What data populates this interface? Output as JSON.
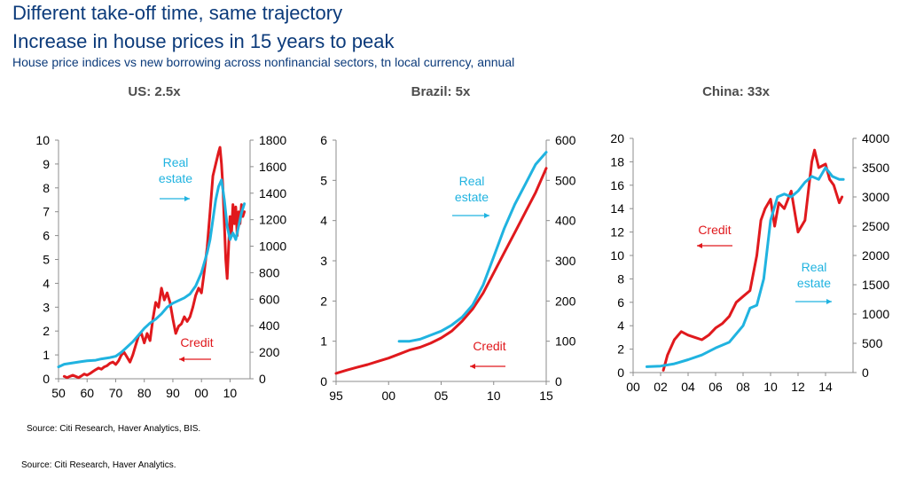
{
  "header": {
    "title": "Different take-off time, same trajectory",
    "subtitle": "Increase in house prices in 15 years to peak",
    "description": "House price indices vs new borrowing across nonfinancial sectors, tn local currency, annual"
  },
  "footer": {
    "source_chart": "Source: Citi Research, Haver Analytics, BIS.",
    "source_page": "Source: Citi Research, Haver Analytics."
  },
  "colors": {
    "credit": "#e0191d",
    "real_estate": "#20b3e0",
    "title": "#0b3a7a"
  },
  "chart_data": [
    {
      "type": "line",
      "title": "US: 2.5x",
      "x_ticks": [
        "50",
        "60",
        "70",
        "80",
        "90",
        "00",
        "10"
      ],
      "x_tick_values": [
        1950,
        1960,
        1970,
        1980,
        1990,
        2000,
        2010
      ],
      "xlim": [
        1950,
        2017
      ],
      "ylim_left": [
        0,
        10
      ],
      "yticks_left": [
        "0",
        "1",
        "2",
        "3",
        "4",
        "5",
        "6",
        "7",
        "8",
        "9",
        "10"
      ],
      "ylim_right": [
        0,
        1800
      ],
      "yticks_right": [
        "0",
        "200",
        "400",
        "600",
        "800",
        "1000",
        "1200",
        "1400",
        "1600",
        "1800"
      ],
      "annotations": {
        "real_estate": [
          "Real",
          "estate"
        ],
        "credit": [
          "Credit"
        ]
      },
      "series": [
        {
          "name": "Credit",
          "axis": "left",
          "color": "#e0191d",
          "x": [
            1952,
            1953,
            1954,
            1955,
            1956,
            1957,
            1958,
            1959,
            1960,
            1961,
            1962,
            1963,
            1964,
            1965,
            1966,
            1967,
            1968,
            1969,
            1970,
            1971,
            1972,
            1973,
            1974,
            1975,
            1976,
            1977,
            1978,
            1979,
            1980,
            1981,
            1982,
            1983,
            1984,
            1985,
            1986,
            1987,
            1988,
            1989,
            1990,
            1991,
            1992,
            1993,
            1994,
            1995,
            1996,
            1997,
            1998,
            1999,
            2000,
            2001,
            2002,
            2003,
            2004,
            2005,
            2006,
            2006.5,
            2007,
            2007.5,
            2008,
            2008.5,
            2009,
            2009.5,
            2010,
            2010.5,
            2011,
            2011.5,
            2012,
            2012.5,
            2013,
            2013.5,
            2014,
            2014.5,
            2015
          ],
          "y": [
            0.1,
            0.05,
            0.1,
            0.15,
            0.1,
            0.05,
            0.12,
            0.2,
            0.15,
            0.22,
            0.3,
            0.38,
            0.45,
            0.4,
            0.5,
            0.55,
            0.65,
            0.7,
            0.6,
            0.75,
            1.0,
            1.1,
            0.9,
            0.7,
            1.0,
            1.4,
            1.8,
            1.9,
            1.5,
            1.9,
            1.6,
            2.5,
            3.2,
            3.0,
            3.8,
            3.3,
            3.6,
            3.2,
            2.5,
            1.9,
            2.2,
            2.3,
            2.6,
            2.4,
            2.6,
            3.0,
            3.5,
            3.8,
            3.6,
            4.5,
            5.5,
            7.0,
            8.5,
            9.0,
            9.5,
            9.7,
            9.0,
            8.0,
            6.5,
            5.0,
            4.2,
            5.5,
            6.8,
            6.0,
            7.3,
            6.5,
            7.2,
            6.0,
            7.0,
            6.5,
            7.3,
            6.8,
            7.0
          ]
        },
        {
          "name": "Real estate",
          "axis": "right",
          "color": "#20b3e0",
          "x": [
            1950,
            1952,
            1955,
            1958,
            1960,
            1963,
            1965,
            1968,
            1970,
            1972,
            1974,
            1976,
            1978,
            1980,
            1982,
            1984,
            1986,
            1988,
            1990,
            1992,
            1994,
            1996,
            1998,
            2000,
            2002,
            2003,
            2004,
            2005,
            2006,
            2007,
            2008,
            2009,
            2010,
            2011,
            2012,
            2013,
            2014,
            2015
          ],
          "y": [
            90,
            110,
            120,
            130,
            135,
            140,
            150,
            160,
            170,
            200,
            240,
            280,
            330,
            380,
            420,
            450,
            490,
            540,
            570,
            590,
            610,
            640,
            700,
            800,
            950,
            1050,
            1200,
            1350,
            1450,
            1500,
            1350,
            1150,
            1050,
            1100,
            1050,
            1150,
            1250,
            1320
          ]
        }
      ]
    },
    {
      "type": "line",
      "title": "Brazil: 5x",
      "x_ticks": [
        "95",
        "00",
        "05",
        "10",
        "15"
      ],
      "x_tick_values": [
        1995,
        2000,
        2005,
        2010,
        2015
      ],
      "xlim": [
        1995,
        2015
      ],
      "ylim_left": [
        0,
        6
      ],
      "yticks_left": [
        "0",
        "1",
        "2",
        "3",
        "4",
        "5",
        "6"
      ],
      "ylim_right": [
        0,
        600
      ],
      "yticks_right": [
        "0",
        "100",
        "200",
        "300",
        "400",
        "500",
        "600"
      ],
      "annotations": {
        "real_estate": [
          "Real",
          "estate"
        ],
        "credit": [
          "Credit"
        ]
      },
      "series": [
        {
          "name": "Credit",
          "axis": "left",
          "color": "#e0191d",
          "x": [
            1995,
            1996,
            1997,
            1998,
            1999,
            2000,
            2001,
            2002,
            2003,
            2004,
            2005,
            2006,
            2007,
            2008,
            2009,
            2010,
            2011,
            2012,
            2013,
            2014,
            2015
          ],
          "y": [
            0.2,
            0.28,
            0.35,
            0.42,
            0.5,
            0.58,
            0.68,
            0.78,
            0.85,
            0.95,
            1.08,
            1.25,
            1.5,
            1.8,
            2.2,
            2.7,
            3.2,
            3.7,
            4.2,
            4.7,
            5.3
          ]
        },
        {
          "name": "Real estate",
          "axis": "right",
          "color": "#20b3e0",
          "x": [
            2001,
            2002,
            2003,
            2004,
            2005,
            2006,
            2007,
            2008,
            2009,
            2010,
            2011,
            2012,
            2013,
            2014,
            2015
          ],
          "y": [
            100,
            100,
            105,
            115,
            125,
            140,
            160,
            190,
            240,
            310,
            380,
            440,
            490,
            540,
            570
          ]
        }
      ]
    },
    {
      "type": "line",
      "title": "China: 33x",
      "x_ticks": [
        "00",
        "02",
        "04",
        "06",
        "08",
        "10",
        "12",
        "14"
      ],
      "x_tick_values": [
        2000,
        2002,
        2004,
        2006,
        2008,
        2010,
        2012,
        2014
      ],
      "xlim": [
        2000,
        2016
      ],
      "ylim_left": [
        0,
        20
      ],
      "yticks_left": [
        "0",
        "2",
        "4",
        "6",
        "8",
        "10",
        "12",
        "14",
        "16",
        "18",
        "20"
      ],
      "ylim_right": [
        0,
        4000
      ],
      "yticks_right": [
        "0",
        "500",
        "1000",
        "1500",
        "2000",
        "2500",
        "3000",
        "3500",
        "4000"
      ],
      "annotations": {
        "real_estate": [
          "Real",
          "estate"
        ],
        "credit": [
          "Credit"
        ]
      },
      "series": [
        {
          "name": "Credit",
          "axis": "left",
          "color": "#e0191d",
          "x": [
            2002.2,
            2002.5,
            2003,
            2003.5,
            2004,
            2004.5,
            2005,
            2005.5,
            2006,
            2006.5,
            2007,
            2007.5,
            2008,
            2008.5,
            2009,
            2009.3,
            2009.6,
            2010,
            2010.3,
            2010.6,
            2011,
            2011.5,
            2012,
            2012.5,
            2013,
            2013.2,
            2013.5,
            2014,
            2014.3,
            2014.6,
            2015,
            2015.2
          ],
          "y": [
            0.2,
            1.5,
            2.8,
            3.5,
            3.2,
            3.0,
            2.8,
            3.2,
            3.8,
            4.2,
            4.8,
            6.0,
            6.5,
            7.0,
            10.0,
            13.0,
            14.0,
            14.8,
            12.5,
            14.5,
            14.0,
            15.5,
            12.0,
            13.0,
            18.0,
            19.0,
            17.5,
            17.8,
            16.5,
            16.0,
            14.5,
            15.0
          ]
        },
        {
          "name": "Real estate",
          "axis": "right",
          "color": "#20b3e0",
          "x": [
            2001,
            2002,
            2003,
            2004,
            2005,
            2006,
            2007,
            2008,
            2008.5,
            2009,
            2009.5,
            2010,
            2010.5,
            2011,
            2011.5,
            2012,
            2012.5,
            2013,
            2013.5,
            2014,
            2014.5,
            2015,
            2015.3
          ],
          "y": [
            100,
            110,
            150,
            220,
            300,
            420,
            520,
            800,
            1100,
            1150,
            1600,
            2600,
            3000,
            3050,
            3000,
            3100,
            3250,
            3350,
            3300,
            3500,
            3350,
            3300,
            3300
          ]
        }
      ]
    }
  ]
}
